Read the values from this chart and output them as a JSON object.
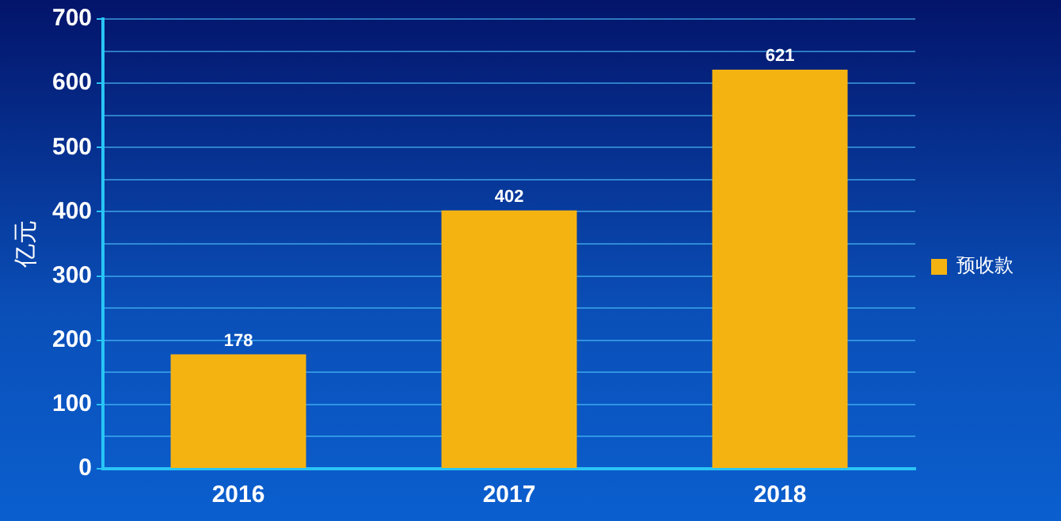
{
  "chart_data": {
    "type": "bar",
    "ylabel": "亿元",
    "categories": [
      "2016",
      "2017",
      "2018"
    ],
    "series": [
      {
        "name": "预收款",
        "color": "#f5b312",
        "values": [
          178,
          402,
          621
        ]
      }
    ],
    "ylim": [
      0,
      700
    ],
    "yticks": [
      0,
      {
        "value": 50,
        "label": null
      },
      100,
      {
        "value": 150,
        "label": null
      },
      200,
      {
        "value": 250,
        "label": null
      },
      300,
      {
        "value": 350,
        "label": null
      },
      400,
      {
        "value": 450,
        "label": null
      },
      500,
      {
        "value": 550,
        "label": null
      },
      600,
      {
        "value": 650,
        "label": null
      },
      700
    ],
    "grid": "y",
    "legend": "right",
    "data_labels": true
  }
}
